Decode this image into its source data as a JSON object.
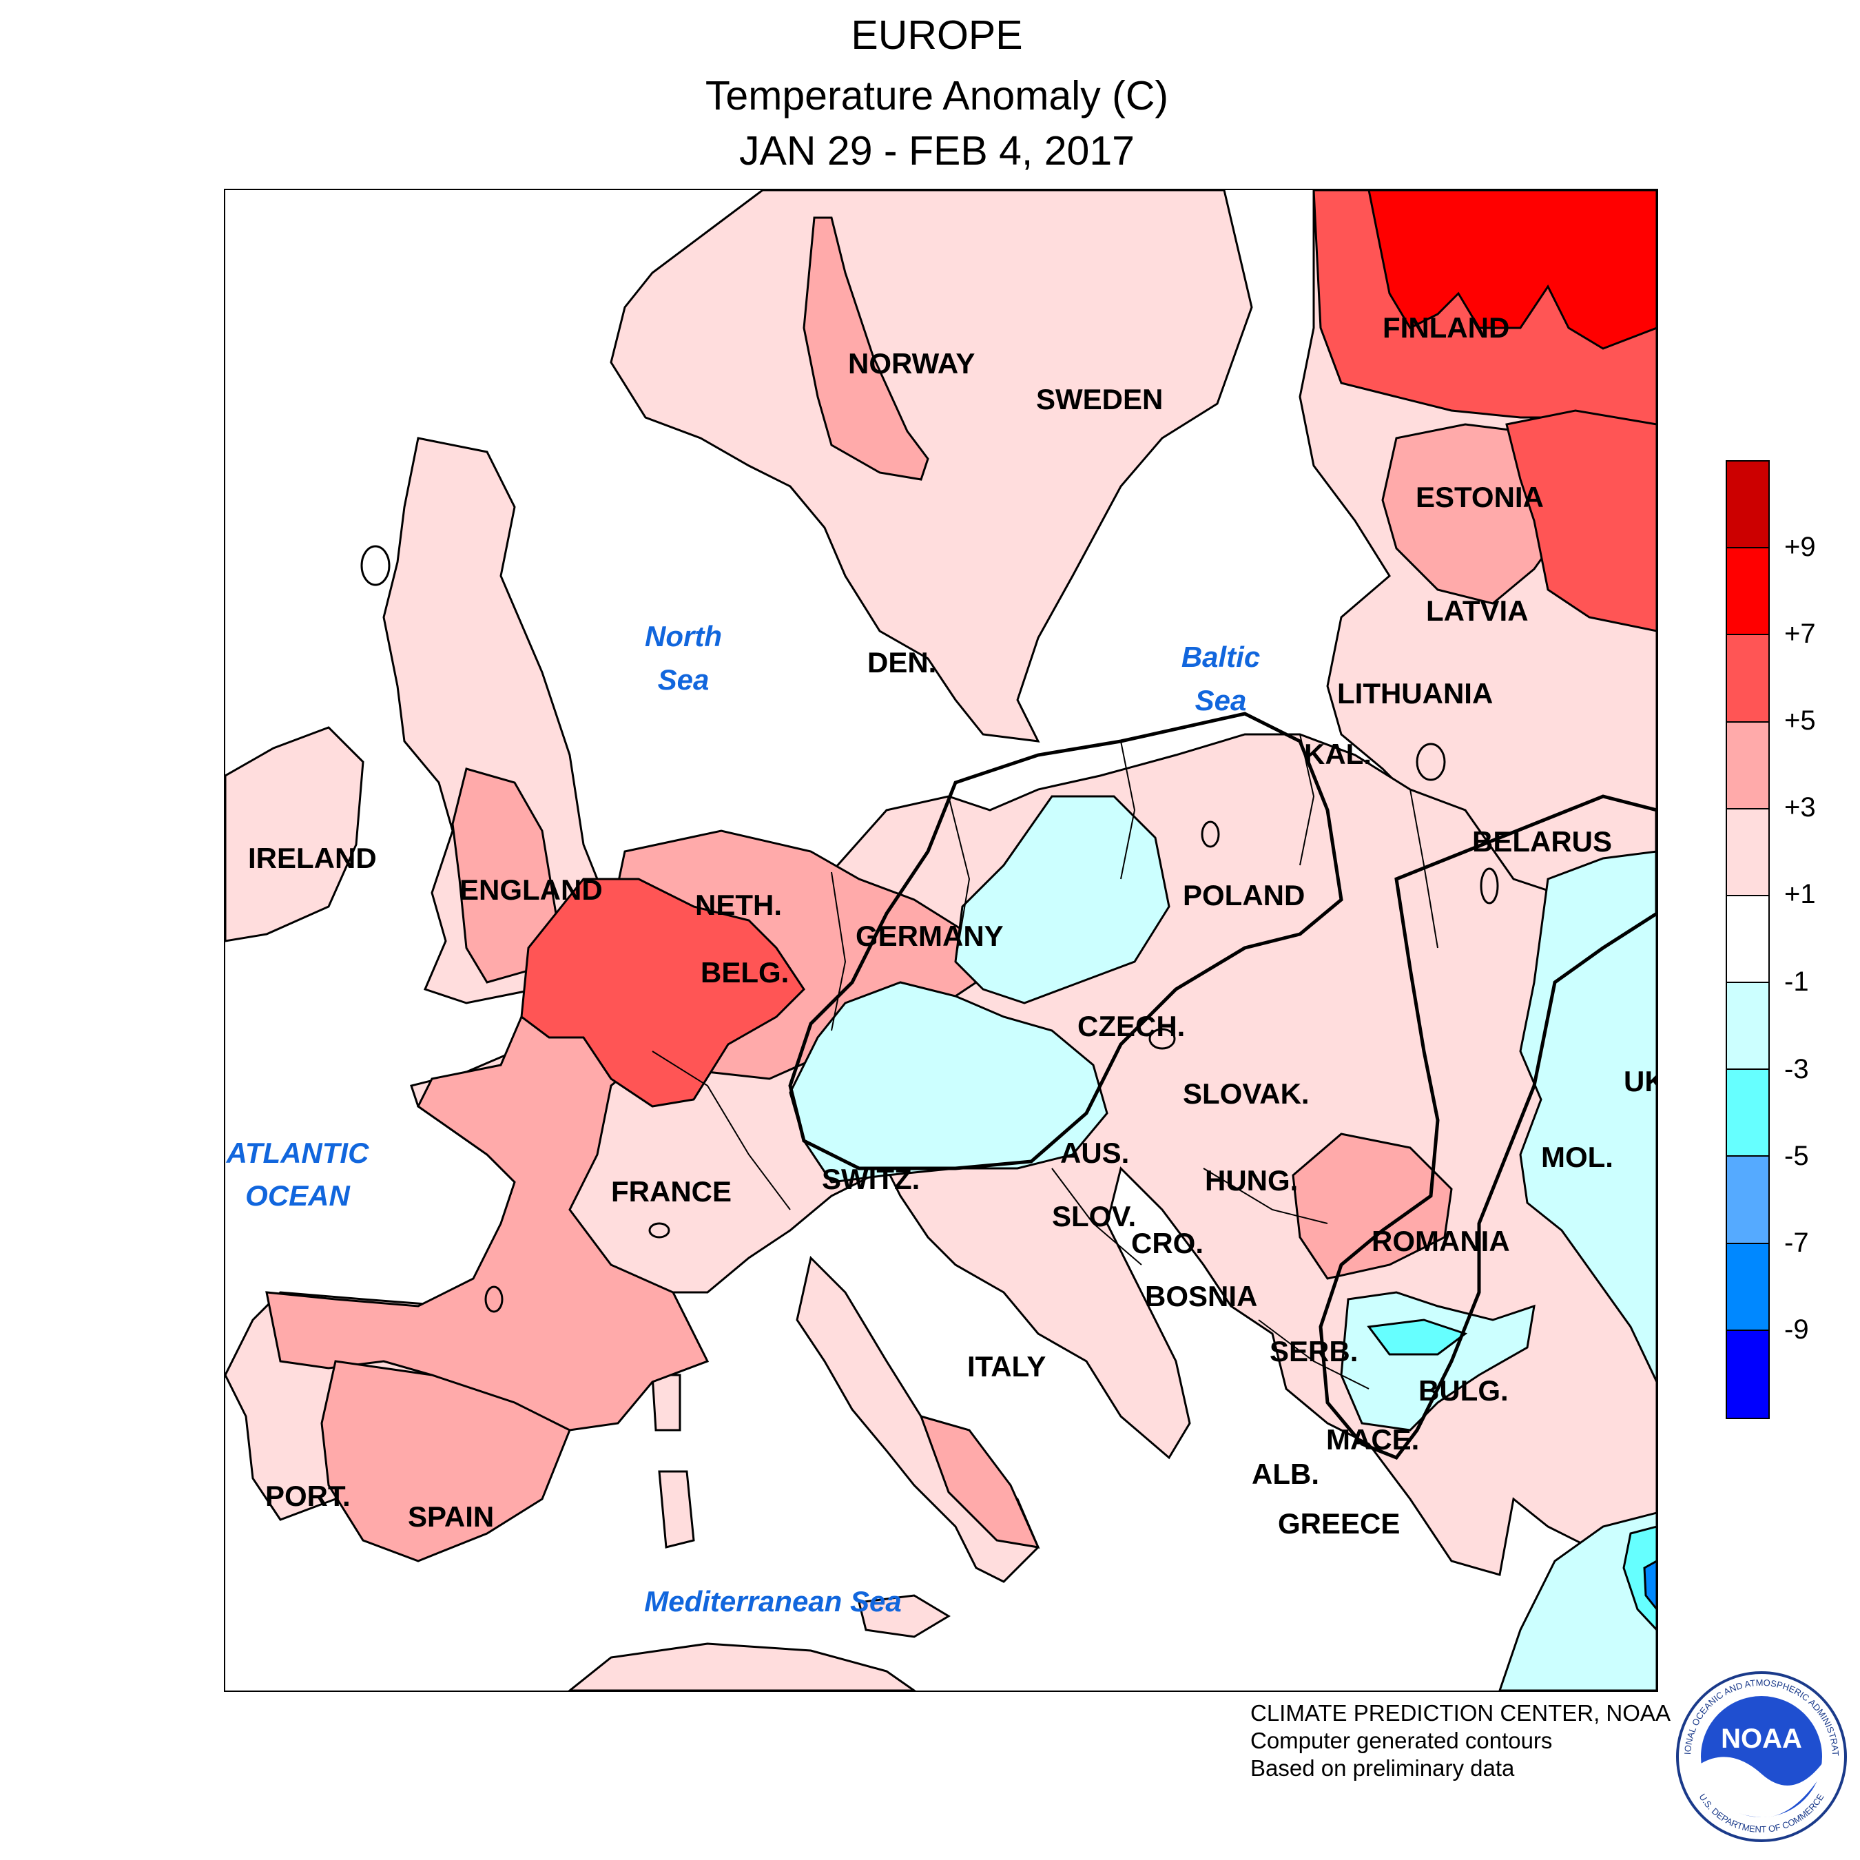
{
  "title": {
    "region": "EUROPE",
    "variable": "Temperature Anomaly (C)",
    "period": "JAN 29 - FEB 4, 2017"
  },
  "seas": {
    "north_sea": [
      "North",
      "Sea"
    ],
    "baltic_sea": [
      "Baltic",
      "Sea"
    ],
    "atlantic_ocean": [
      "ATLANTIC",
      "OCEAN"
    ],
    "mediterranean": [
      "Mediterranean Sea"
    ]
  },
  "countries": {
    "finland": "FINLAND",
    "norway": "NORWAY",
    "sweden": "SWEDEN",
    "estonia": "ESTONIA",
    "latvia": "LATVIA",
    "lithuania": "LITHUANIA",
    "kaliningrad": "KAL.",
    "denmark": "DEN.",
    "belarus": "BELARUS",
    "ireland": "IRELAND",
    "england": "ENGLAND",
    "netherlands": "NETH.",
    "belgium": "BELG.",
    "germany": "GERMANY",
    "poland": "POLAND",
    "czech": "CZECH.",
    "slovakia": "SLOVAK.",
    "ukraine": "UK",
    "france": "FRANCE",
    "switzerland": "SWITZ.",
    "austria": "AUS.",
    "hungary": "HUNG.",
    "moldova": "MOL.",
    "slovenia": "SLOV.",
    "croatia": "CRO.",
    "romania": "ROMANIA",
    "bosnia": "BOSNIA",
    "serbia": "SERB.",
    "italy": "ITALY",
    "bulgaria": "BULG.",
    "macedonia": "MACE.",
    "albania": "ALB.",
    "greece": "GREECE",
    "portugal": "PORT.",
    "spain": "SPAIN"
  },
  "legend": {
    "ticks": [
      "+9",
      "+7",
      "+5",
      "+3",
      "+1",
      "-1",
      "-3",
      "-5",
      "-7",
      "-9"
    ],
    "colors": [
      "#cc0000",
      "#ff0000",
      "#ff5555",
      "#ffaaaa",
      "#ffdddd",
      "#ffffff",
      "#ccffff",
      "#66ffff",
      "#55aaff",
      "#0088ff",
      "#0000ff"
    ]
  },
  "credits": {
    "line1": "CLIMATE PREDICTION CENTER, NOAA",
    "line2": "Computer generated contours",
    "line3": "Based on preliminary data"
  },
  "logo": {
    "text": "NOAA",
    "ring_top": "NATIONAL OCEANIC AND ATMOSPHERIC ADMINISTRATION",
    "ring_bottom": "U.S. DEPARTMENT OF COMMERCE"
  },
  "colors": {
    "anom_1_3": "#ffdddd",
    "anom_3_5": "#ffaaaa",
    "anom_5_7": "#ff5555",
    "anom_7_9": "#ff0000",
    "anom_m1_m3": "#ccffff",
    "anom_m3_m5": "#66ffff",
    "anom_m5_m7": "#55aaff",
    "anom_m7_m9": "#0088ff",
    "sea_label": "#1166dd"
  }
}
